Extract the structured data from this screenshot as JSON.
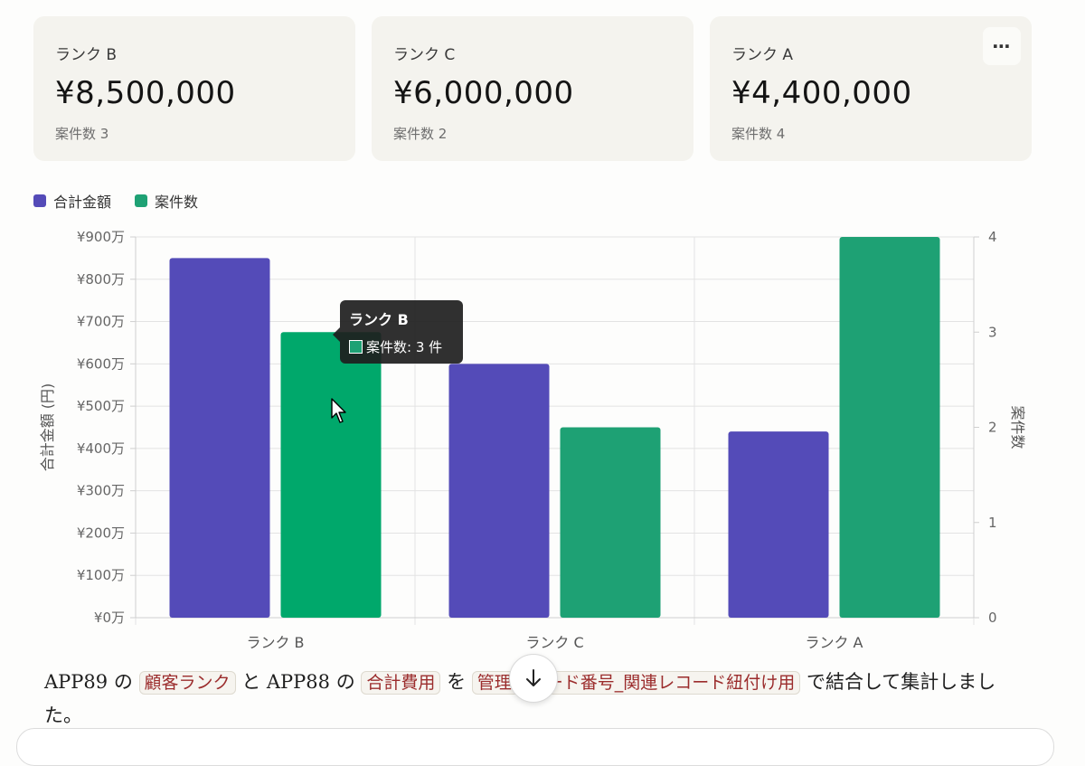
{
  "cards": [
    {
      "label": "ランク B",
      "value": "¥8,500,000",
      "count": "案件数 3"
    },
    {
      "label": "ランク C",
      "value": "¥6,000,000",
      "count": "案件数 2"
    },
    {
      "label": "ランク A",
      "value": "¥4,400,000",
      "count": "案件数 4"
    }
  ],
  "more_button": "⋯",
  "tooltip": {
    "title": "ランク B",
    "row": "案件数: 3 件"
  },
  "text": {
    "p1": "APP89 の ",
    "code1": "顧客ランク",
    "p2": " と APP88 の ",
    "code2": "合計費用",
    "p3": " を ",
    "code3": "管理レコード番号_関連レコード紐付け用",
    "p4": " で結合して集計しました。"
  },
  "colors": {
    "amount": "#544bb8",
    "count": "#1ea174",
    "count_active": "#00a86b"
  },
  "chart_data": {
    "type": "bar",
    "categories": [
      "ランク B",
      "ランク C",
      "ランク A"
    ],
    "series": [
      {
        "name": "合計金額",
        "axis": "left",
        "values": [
          8500000,
          6000000,
          4400000
        ]
      },
      {
        "name": "案件数",
        "axis": "right",
        "values": [
          3,
          2,
          4
        ]
      }
    ],
    "ylabel": "合計金額 (円)",
    "y2label": "案件数",
    "ylim": [
      0,
      9000000
    ],
    "y2lim": [
      0,
      4
    ],
    "yticks": [
      "¥0万",
      "¥100万",
      "¥200万",
      "¥300万",
      "¥400万",
      "¥500万",
      "¥600万",
      "¥700万",
      "¥800万",
      "¥900万"
    ],
    "y2ticks": [
      "0",
      "1",
      "2",
      "3",
      "4"
    ],
    "legend": "top-left",
    "grid": true
  }
}
